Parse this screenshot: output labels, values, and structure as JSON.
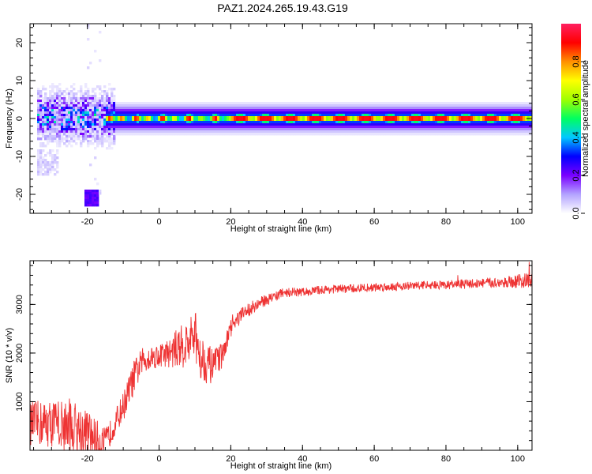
{
  "title": "PAZ1.2024.265.19.43.G19",
  "chart_data": [
    {
      "type": "heatmap",
      "xlabel": "Height of straight line (km)",
      "ylabel": "Frequency (Hz)",
      "xlim": [
        -36,
        104
      ],
      "ylim": [
        -25,
        25
      ],
      "x_ticks": [
        -20,
        0,
        20,
        40,
        60,
        80,
        100
      ],
      "y_ticks": [
        -20,
        -10,
        0,
        10,
        20
      ],
      "colorbar": {
        "label": "Normalized spectral amplitude",
        "range": [
          0,
          1
        ],
        "ticks": [
          0.0,
          0.2,
          0.4,
          0.6,
          0.8
        ],
        "tick_labels": [
          "0.0",
          "0.2",
          "0.4",
          "0.6",
          "0.8"
        ],
        "colors": [
          "#ffffff",
          "#b3a3ff",
          "#7a00ff",
          "#0000ff",
          "#00c8ff",
          "#00ff60",
          "#a0ff00",
          "#ffff00",
          "#ff9000",
          "#ff0000",
          "#ff2060"
        ]
      },
      "features": [
        {
          "x_range": [
            -15,
            104
          ],
          "frequency": 0,
          "amplitude": 1.0,
          "description_level": "red"
        },
        {
          "x_range": [
            -33,
            -22
          ],
          "frequency_range": [
            -6,
            4
          ],
          "amplitude": 0.3
        },
        {
          "x_range": [
            -20,
            -18
          ],
          "frequency_range": [
            -23,
            -19
          ],
          "amplitude": 0.2
        },
        {
          "x_range": [
            -33,
            -29
          ],
          "frequency_range": [
            -15,
            -9
          ],
          "amplitude": 0.05
        }
      ]
    },
    {
      "type": "line",
      "xlabel": "Height of straight line (km)",
      "ylabel": "SNR (10 * v/v)",
      "xlim": [
        -36,
        104
      ],
      "ylim": [
        0,
        3900
      ],
      "x_ticks": [
        -20,
        0,
        20,
        40,
        60,
        80,
        100
      ],
      "y_ticks": [
        1000,
        2000,
        3000
      ],
      "color": "#ee3333",
      "series": [
        {
          "x": [
            -36,
            -30,
            -25,
            -20,
            -17,
            -15,
            -13,
            -10,
            -7,
            -5,
            -3,
            0,
            3,
            5,
            8,
            10,
            12,
            15,
            18,
            20,
            22,
            25,
            30,
            35,
            40,
            45,
            50,
            55,
            60,
            65,
            70,
            75,
            80,
            85,
            90,
            95,
            100,
            104
          ],
          "y": [
            550,
            550,
            500,
            350,
            200,
            150,
            450,
            900,
            1500,
            1800,
            1900,
            1950,
            2000,
            2100,
            2200,
            2300,
            1900,
            1700,
            2000,
            2500,
            2700,
            2900,
            3100,
            3250,
            3250,
            3300,
            3320,
            3330,
            3350,
            3370,
            3380,
            3400,
            3400,
            3420,
            3440,
            3450,
            3480,
            3500
          ],
          "noise_amplitude": [
            450,
            500,
            600,
            500,
            400,
            300,
            250,
            300,
            350,
            300,
            250,
            250,
            300,
            400,
            500,
            600,
            500,
            350,
            250,
            200,
            180,
            150,
            120,
            100,
            90,
            90,
            90,
            90,
            90,
            90,
            90,
            90,
            90,
            100,
            100,
            110,
            140,
            160
          ]
        }
      ]
    }
  ]
}
